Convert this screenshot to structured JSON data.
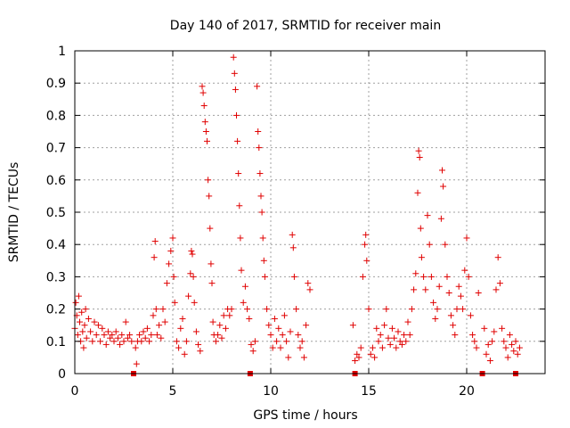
{
  "chart_data": {
    "type": "scatter",
    "title": "Day 140 of 2017, SRMTID for receiver main",
    "xlabel": "GPS time / hours",
    "ylabel": "SRMTID / TECUs",
    "xlim": [
      0,
      24
    ],
    "ylim": [
      0,
      1
    ],
    "xticks": [
      0,
      5,
      10,
      15,
      20
    ],
    "xtick_labels": [
      "0",
      "5",
      "10",
      "15",
      "20"
    ],
    "yticks": [
      0,
      0.1,
      0.2,
      0.3,
      0.4,
      0.5,
      0.6,
      0.7,
      0.8,
      0.9,
      1
    ],
    "ytick_labels": [
      "0",
      "0.1",
      "0.2",
      "0.3",
      "0.4",
      "0.5",
      "0.6",
      "0.7",
      "0.8",
      "0.9",
      "1"
    ],
    "grid": true,
    "marker": "plus",
    "marker_color": "#e00000",
    "data_gap_markers_x": [
      3.0,
      8.95,
      14.3,
      20.8,
      22.5
    ],
    "series": [
      {
        "name": "SRMTID",
        "points": [
          [
            0.0,
            0.14
          ],
          [
            0.05,
            0.22
          ],
          [
            0.1,
            0.18
          ],
          [
            0.15,
            0.12
          ],
          [
            0.2,
            0.24
          ],
          [
            0.25,
            0.16
          ],
          [
            0.3,
            0.1
          ],
          [
            0.35,
            0.19
          ],
          [
            0.4,
            0.13
          ],
          [
            0.45,
            0.08
          ],
          [
            0.5,
            0.15
          ],
          [
            0.55,
            0.2
          ],
          [
            0.6,
            0.11
          ],
          [
            0.7,
            0.17
          ],
          [
            0.8,
            0.13
          ],
          [
            0.9,
            0.1
          ],
          [
            1.0,
            0.16
          ],
          [
            1.1,
            0.12
          ],
          [
            1.2,
            0.15
          ],
          [
            1.3,
            0.1
          ],
          [
            1.4,
            0.14
          ],
          [
            1.5,
            0.12
          ],
          [
            1.6,
            0.09
          ],
          [
            1.7,
            0.13
          ],
          [
            1.8,
            0.11
          ],
          [
            1.9,
            0.12
          ],
          [
            2.0,
            0.1
          ],
          [
            2.1,
            0.13
          ],
          [
            2.2,
            0.11
          ],
          [
            2.3,
            0.09
          ],
          [
            2.4,
            0.12
          ],
          [
            2.5,
            0.1
          ],
          [
            2.6,
            0.16
          ],
          [
            2.7,
            0.11
          ],
          [
            2.8,
            0.12
          ],
          [
            2.9,
            0.1
          ],
          [
            3.1,
            0.08
          ],
          [
            3.15,
            0.03
          ],
          [
            3.2,
            0.1
          ],
          [
            3.3,
            0.12
          ],
          [
            3.4,
            0.1
          ],
          [
            3.5,
            0.13
          ],
          [
            3.6,
            0.11
          ],
          [
            3.7,
            0.14
          ],
          [
            3.8,
            0.1
          ],
          [
            3.9,
            0.12
          ],
          [
            4.0,
            0.18
          ],
          [
            4.05,
            0.36
          ],
          [
            4.1,
            0.41
          ],
          [
            4.15,
            0.2
          ],
          [
            4.2,
            0.12
          ],
          [
            4.3,
            0.15
          ],
          [
            4.4,
            0.11
          ],
          [
            4.5,
            0.2
          ],
          [
            4.6,
            0.16
          ],
          [
            4.7,
            0.28
          ],
          [
            4.8,
            0.34
          ],
          [
            4.9,
            0.38
          ],
          [
            5.0,
            0.42
          ],
          [
            5.05,
            0.3
          ],
          [
            5.1,
            0.22
          ],
          [
            5.2,
            0.1
          ],
          [
            5.3,
            0.08
          ],
          [
            5.4,
            0.14
          ],
          [
            5.5,
            0.17
          ],
          [
            5.6,
            0.06
          ],
          [
            5.7,
            0.1
          ],
          [
            5.8,
            0.24
          ],
          [
            5.9,
            0.31
          ],
          [
            5.95,
            0.38
          ],
          [
            6.0,
            0.37
          ],
          [
            6.05,
            0.3
          ],
          [
            6.1,
            0.22
          ],
          [
            6.2,
            0.13
          ],
          [
            6.3,
            0.09
          ],
          [
            6.4,
            0.07
          ],
          [
            6.5,
            0.89
          ],
          [
            6.55,
            0.87
          ],
          [
            6.6,
            0.83
          ],
          [
            6.65,
            0.78
          ],
          [
            6.7,
            0.75
          ],
          [
            6.75,
            0.72
          ],
          [
            6.8,
            0.6
          ],
          [
            6.85,
            0.55
          ],
          [
            6.9,
            0.45
          ],
          [
            6.95,
            0.34
          ],
          [
            7.0,
            0.28
          ],
          [
            7.05,
            0.16
          ],
          [
            7.1,
            0.12
          ],
          [
            7.2,
            0.1
          ],
          [
            7.3,
            0.12
          ],
          [
            7.4,
            0.15
          ],
          [
            7.5,
            0.11
          ],
          [
            7.6,
            0.18
          ],
          [
            7.7,
            0.14
          ],
          [
            7.8,
            0.2
          ],
          [
            7.9,
            0.18
          ],
          [
            8.0,
            0.2
          ],
          [
            8.1,
            0.98
          ],
          [
            8.15,
            0.93
          ],
          [
            8.2,
            0.88
          ],
          [
            8.25,
            0.8
          ],
          [
            8.3,
            0.72
          ],
          [
            8.35,
            0.62
          ],
          [
            8.4,
            0.52
          ],
          [
            8.45,
            0.42
          ],
          [
            8.5,
            0.32
          ],
          [
            8.6,
            0.22
          ],
          [
            8.7,
            0.27
          ],
          [
            8.8,
            0.2
          ],
          [
            8.9,
            0.17
          ],
          [
            9.0,
            0.09
          ],
          [
            9.1,
            0.07
          ],
          [
            9.2,
            0.1
          ],
          [
            9.3,
            0.89
          ],
          [
            9.35,
            0.75
          ],
          [
            9.4,
            0.7
          ],
          [
            9.45,
            0.62
          ],
          [
            9.5,
            0.55
          ],
          [
            9.55,
            0.5
          ],
          [
            9.6,
            0.42
          ],
          [
            9.65,
            0.35
          ],
          [
            9.7,
            0.3
          ],
          [
            9.8,
            0.2
          ],
          [
            9.9,
            0.15
          ],
          [
            10.0,
            0.12
          ],
          [
            10.1,
            0.08
          ],
          [
            10.2,
            0.17
          ],
          [
            10.3,
            0.1
          ],
          [
            10.4,
            0.14
          ],
          [
            10.5,
            0.08
          ],
          [
            10.6,
            0.12
          ],
          [
            10.7,
            0.18
          ],
          [
            10.8,
            0.1
          ],
          [
            10.9,
            0.05
          ],
          [
            11.0,
            0.13
          ],
          [
            11.1,
            0.43
          ],
          [
            11.15,
            0.39
          ],
          [
            11.2,
            0.3
          ],
          [
            11.3,
            0.2
          ],
          [
            11.4,
            0.12
          ],
          [
            11.5,
            0.08
          ],
          [
            11.6,
            0.1
          ],
          [
            11.7,
            0.05
          ],
          [
            11.8,
            0.15
          ],
          [
            11.9,
            0.28
          ],
          [
            12.0,
            0.26
          ],
          [
            14.2,
            0.15
          ],
          [
            14.3,
            0.04
          ],
          [
            14.4,
            0.06
          ],
          [
            14.5,
            0.05
          ],
          [
            14.6,
            0.08
          ],
          [
            14.7,
            0.3
          ],
          [
            14.8,
            0.4
          ],
          [
            14.85,
            0.43
          ],
          [
            14.9,
            0.35
          ],
          [
            15.0,
            0.2
          ],
          [
            15.1,
            0.06
          ],
          [
            15.2,
            0.08
          ],
          [
            15.3,
            0.05
          ],
          [
            15.4,
            0.14
          ],
          [
            15.5,
            0.1
          ],
          [
            15.6,
            0.12
          ],
          [
            15.7,
            0.08
          ],
          [
            15.8,
            0.15
          ],
          [
            15.9,
            0.2
          ],
          [
            16.0,
            0.11
          ],
          [
            16.1,
            0.09
          ],
          [
            16.2,
            0.14
          ],
          [
            16.3,
            0.11
          ],
          [
            16.4,
            0.08
          ],
          [
            16.5,
            0.13
          ],
          [
            16.6,
            0.1
          ],
          [
            16.7,
            0.09
          ],
          [
            16.8,
            0.12
          ],
          [
            16.9,
            0.1
          ],
          [
            17.0,
            0.16
          ],
          [
            17.1,
            0.12
          ],
          [
            17.2,
            0.2
          ],
          [
            17.3,
            0.26
          ],
          [
            17.4,
            0.31
          ],
          [
            17.5,
            0.56
          ],
          [
            17.55,
            0.69
          ],
          [
            17.6,
            0.67
          ],
          [
            17.65,
            0.45
          ],
          [
            17.7,
            0.36
          ],
          [
            17.8,
            0.3
          ],
          [
            17.9,
            0.26
          ],
          [
            18.0,
            0.49
          ],
          [
            18.1,
            0.4
          ],
          [
            18.2,
            0.3
          ],
          [
            18.3,
            0.22
          ],
          [
            18.4,
            0.17
          ],
          [
            18.5,
            0.2
          ],
          [
            18.6,
            0.27
          ],
          [
            18.7,
            0.48
          ],
          [
            18.75,
            0.63
          ],
          [
            18.8,
            0.58
          ],
          [
            18.9,
            0.4
          ],
          [
            19.0,
            0.3
          ],
          [
            19.1,
            0.25
          ],
          [
            19.2,
            0.18
          ],
          [
            19.3,
            0.15
          ],
          [
            19.4,
            0.12
          ],
          [
            19.5,
            0.2
          ],
          [
            19.6,
            0.27
          ],
          [
            19.7,
            0.24
          ],
          [
            19.8,
            0.2
          ],
          [
            19.9,
            0.32
          ],
          [
            20.0,
            0.42
          ],
          [
            20.1,
            0.3
          ],
          [
            20.2,
            0.18
          ],
          [
            20.3,
            0.12
          ],
          [
            20.4,
            0.1
          ],
          [
            20.5,
            0.08
          ],
          [
            20.6,
            0.25
          ],
          [
            20.9,
            0.14
          ],
          [
            21.0,
            0.06
          ],
          [
            21.1,
            0.09
          ],
          [
            21.2,
            0.04
          ],
          [
            21.3,
            0.1
          ],
          [
            21.4,
            0.13
          ],
          [
            21.5,
            0.26
          ],
          [
            21.6,
            0.36
          ],
          [
            21.7,
            0.28
          ],
          [
            21.8,
            0.14
          ],
          [
            21.9,
            0.1
          ],
          [
            22.0,
            0.08
          ],
          [
            22.1,
            0.05
          ],
          [
            22.2,
            0.12
          ],
          [
            22.3,
            0.09
          ],
          [
            22.4,
            0.07
          ],
          [
            22.5,
            0.1
          ],
          [
            22.6,
            0.06
          ],
          [
            22.7,
            0.08
          ]
        ]
      }
    ]
  }
}
